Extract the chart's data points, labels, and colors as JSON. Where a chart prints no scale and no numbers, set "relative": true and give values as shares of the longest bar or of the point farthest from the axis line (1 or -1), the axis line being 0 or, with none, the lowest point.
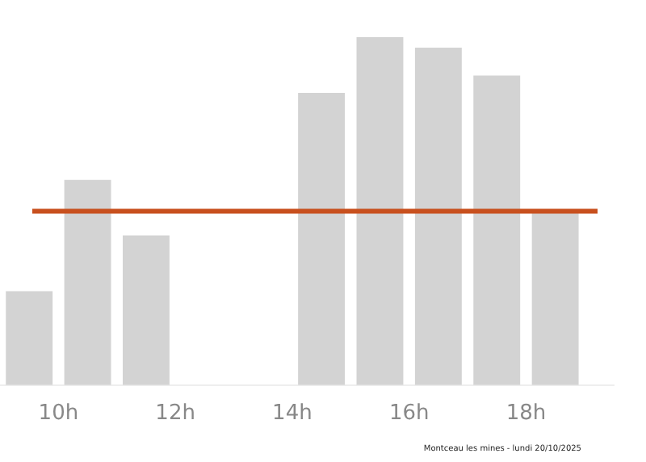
{
  "chart_data": {
    "type": "bar",
    "relative": true,
    "x": [
      9.5,
      10.5,
      11.5,
      12.5,
      13.5,
      14.5,
      15.5,
      16.5,
      17.5,
      18.5
    ],
    "values": [
      0.27,
      0.59,
      0.43,
      0,
      0,
      0.84,
      1,
      0.97,
      0.89,
      0.5
    ],
    "color": "#d3d3d3",
    "xlim": [
      9,
      19.5
    ],
    "xticks": [
      {
        "value": 10,
        "label": "10h"
      },
      {
        "value": 12,
        "label": "12h"
      },
      {
        "value": 14,
        "label": "14h"
      },
      {
        "value": 16,
        "label": "16h"
      },
      {
        "value": 18,
        "label": "18h"
      }
    ],
    "ref_lines": [
      {
        "axis": "y",
        "value": 0.5,
        "color": "#c8501e"
      }
    ],
    "annotations": [
      "Montceau les mines - lundi 20/10/2025"
    ],
    "grid": false,
    "legend": false
  }
}
